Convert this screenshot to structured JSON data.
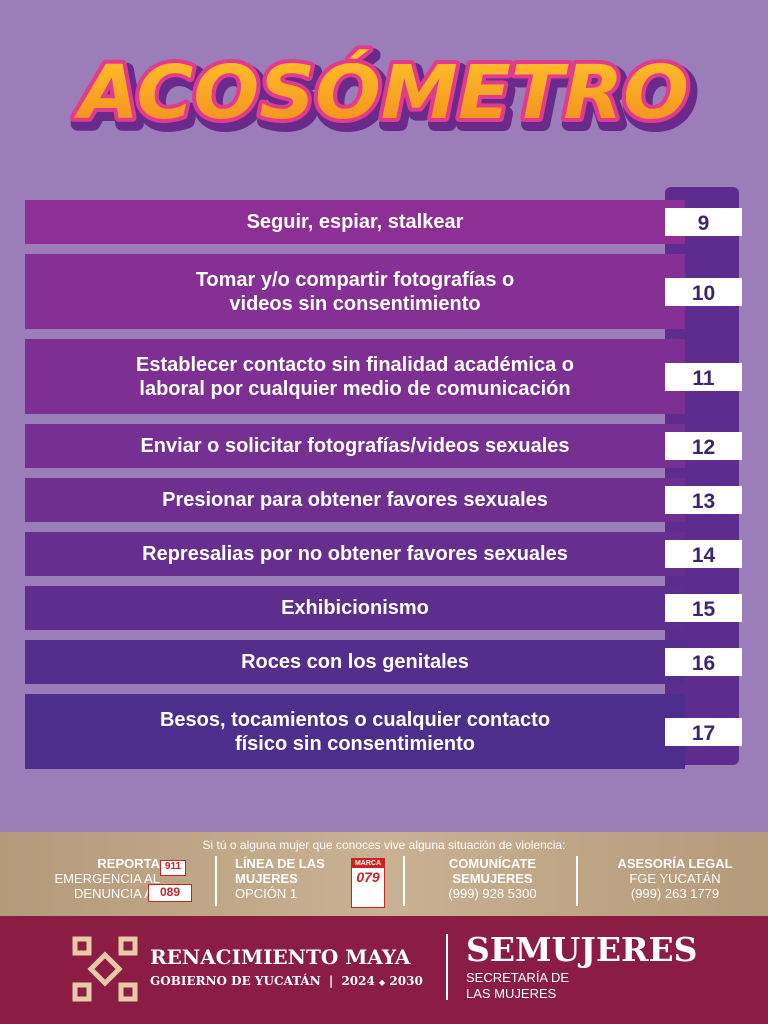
{
  "title": "ACOSÓMETRO",
  "items": [
    {
      "lines": [
        "Seguir, espiar, stalkear"
      ],
      "score": 9
    },
    {
      "lines": [
        "Tomar y/o compartir fotografías o",
        "videos sin consentimiento"
      ],
      "score": 10
    },
    {
      "lines": [
        "Establecer contacto sin finalidad académica o",
        "laboral por cualquier medio de comunicación"
      ],
      "score": 11
    },
    {
      "lines": [
        "Enviar o solicitar fotografías/videos sexuales"
      ],
      "score": 12
    },
    {
      "lines": [
        "Presionar para obtener favores sexuales"
      ],
      "score": 13
    },
    {
      "lines": [
        "Represalias por no obtener favores sexuales"
      ],
      "score": 14
    },
    {
      "lines": [
        "Exhibicionismo"
      ],
      "score": 15
    },
    {
      "lines": [
        "Roces con los genitales"
      ],
      "score": 16
    },
    {
      "lines": [
        "Besos, tocamientos o cualquier contacto",
        "físico sin consentimiento"
      ],
      "score": 17
    }
  ],
  "footer": {
    "intro": "Si tú o alguna mujer que conoces vive alguna situación de violencia:",
    "report": {
      "lines": [
        "REPORTA",
        "EMERGENCIA AL",
        "DENUNCIA AL"
      ],
      "icons": [
        "911",
        "089"
      ]
    },
    "line": {
      "lines": [
        "LÍNEA DE LAS",
        "MUJERES",
        "OPCIÓN 1"
      ],
      "icon": [
        "MARCA",
        "079"
      ]
    },
    "contact": {
      "lines": [
        "COMUNÍCATE",
        "SEMUJERES",
        "(999) 928 5300"
      ]
    },
    "legal": {
      "lines": [
        "ASESORÍA LEGAL",
        "FGE YUCATÁN",
        "(999) 263 1779"
      ]
    }
  },
  "brand": {
    "name": "RENACIMIENTO MAYA",
    "gov": "GOBIERNO DE YUCATÁN",
    "years": [
      "2024",
      "2030"
    ],
    "agency": "SEMUJERES",
    "agency_lines": [
      "SECRETARÍA DE",
      "LAS MUJERES"
    ]
  }
}
